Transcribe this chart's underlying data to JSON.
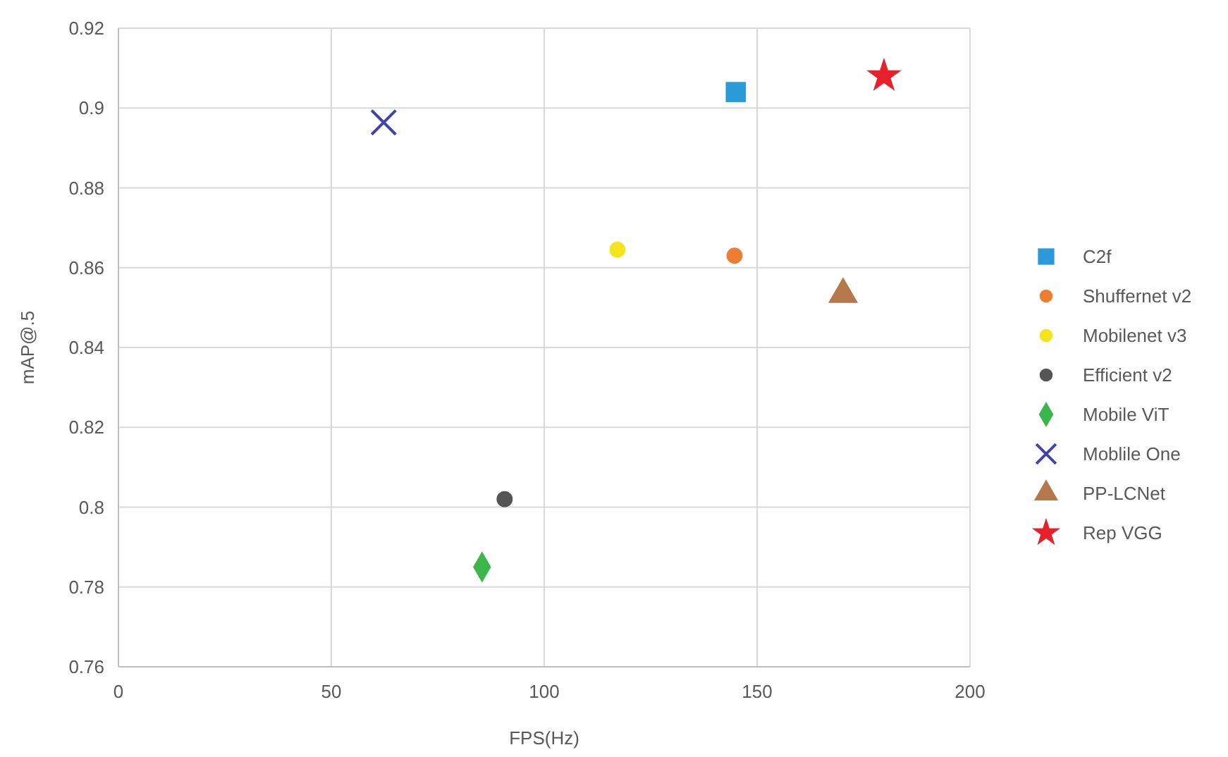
{
  "chart_data": {
    "type": "scatter",
    "xlabel": "FPS(Hz)",
    "ylabel": "mAP@.5",
    "xlim": [
      0,
      200
    ],
    "xticks": [
      0,
      50,
      100,
      150,
      200
    ],
    "ylim": [
      0.76,
      0.92
    ],
    "yticks": [
      0.76,
      0.78,
      0.8,
      0.82,
      0.84,
      0.86,
      0.88,
      0.9,
      0.92
    ],
    "grid": true,
    "legend": "right",
    "series": [
      {
        "name": "C2f",
        "color": "#2a9ad8",
        "marker": "square",
        "x": [
          145
        ],
        "values": [
          0.904
        ]
      },
      {
        "name": "Shuffernet v2",
        "color": "#ed7d31",
        "marker": "circle",
        "x": [
          144.7
        ],
        "values": [
          0.863
        ]
      },
      {
        "name": "Mobilenet v3",
        "color": "#f2e51c",
        "x": [
          117.2
        ],
        "values": [
          0.8645
        ]
      },
      {
        "name": "Efficient v2",
        "color": "#555555",
        "x": [
          90.7
        ],
        "values": [
          0.802
        ]
      },
      {
        "name": "Mobile ViT",
        "color": "#3cb54a",
        "marker": "diamond",
        "x": [
          85.4
        ],
        "values": [
          0.785
        ]
      },
      {
        "name": "Moblile One",
        "color": "#4044a8",
        "marker": "cross",
        "x": [
          62.3
        ],
        "values": [
          0.8964
        ]
      },
      {
        "name": "PP-LCNet",
        "color": "#b5784a",
        "marker": "triangle",
        "x": [
          170.2
        ],
        "values": [
          0.8533
        ]
      },
      {
        "name": "Rep VGG",
        "color": "#e8202a",
        "marker": "star",
        "x": [
          179.8
        ],
        "values": [
          0.908
        ]
      }
    ]
  }
}
